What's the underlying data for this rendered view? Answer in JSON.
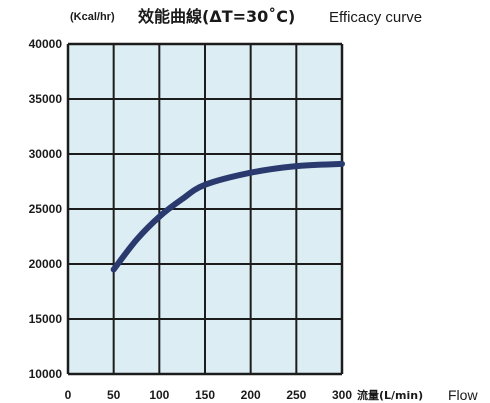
{
  "chart_data": {
    "type": "line",
    "title": "效能曲線(ΔT=30˚C)",
    "title_en": "Efficacy curve",
    "ylabel": "(Kcal/hr)",
    "xlabel": "流量(L/min)",
    "xlabel_en": "Flow",
    "xlim": [
      0,
      300
    ],
    "ylim": [
      10000,
      40000
    ],
    "x_ticks": [
      0,
      50,
      100,
      150,
      200,
      250,
      300
    ],
    "y_ticks": [
      10000,
      15000,
      20000,
      25000,
      30000,
      35000,
      40000
    ],
    "grid": true,
    "series": [
      {
        "x": [
          50,
          75,
          100,
          125,
          150,
          200,
          250,
          300
        ],
        "y": [
          19500,
          22200,
          24300,
          25900,
          27200,
          28300,
          28900,
          29100
        ]
      }
    ],
    "colors": {
      "plot_bg": "#dceef3",
      "grid": "#1c1c1c",
      "line": "#2a3a6e"
    }
  }
}
